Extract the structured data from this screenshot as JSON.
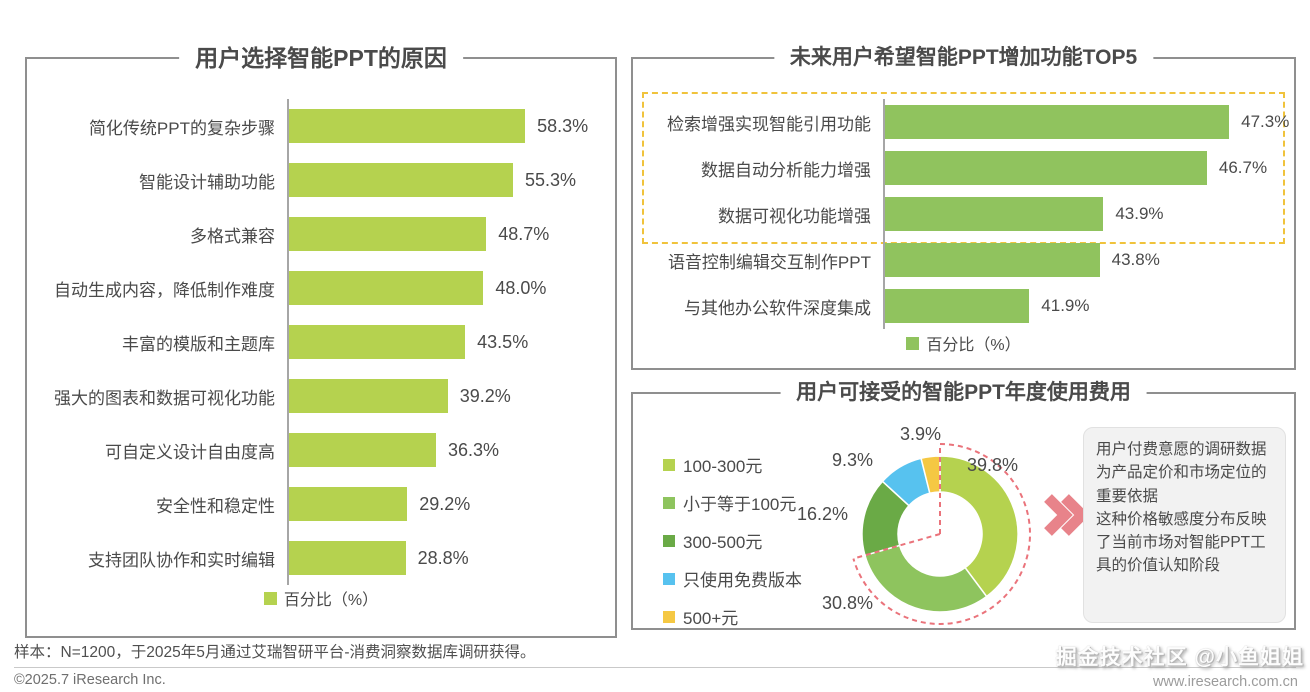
{
  "panels": {
    "reasons": {
      "title": "用户选择智能PPT的原因",
      "legend": "百分比（%）"
    },
    "top5": {
      "title": "未来用户希望智能PPT增加功能TOP5",
      "legend": "百分比（%）"
    },
    "price": {
      "title": "用户可接受的智能PPT年度使用费用",
      "note_lines": [
        "用户付费意愿的调研数据为产品定价和市场定位的重要依据",
        "这种价格敏感度分布反映了当前市场对智能PPT工具的价值认知阶段"
      ]
    }
  },
  "chart_data": [
    {
      "type": "bar",
      "orientation": "horizontal",
      "title": "用户选择智能PPT的原因",
      "categories": [
        "简化传统PPT的复杂步骤",
        "智能设计辅助功能",
        "多格式兼容",
        "自动生成内容，降低制作难度",
        "丰富的模版和主题库",
        "强大的图表和数据可视化功能",
        "可自定义设计自由度高",
        "安全性和稳定性",
        "支持团队协作和实时编辑"
      ],
      "values": [
        58.3,
        55.3,
        48.7,
        48.0,
        43.5,
        39.2,
        36.3,
        29.2,
        28.8
      ],
      "unit": "%",
      "xlim": [
        0,
        80
      ],
      "axis_hidden": true,
      "bar_color": "#b5d24f",
      "legend": "百分比（%）",
      "legend_position": "bottom"
    },
    {
      "type": "bar",
      "orientation": "horizontal",
      "title": "未来用户希望智能PPT增加功能TOP5",
      "categories": [
        "检索增强实现智能引用功能",
        "数据自动分析能力增强",
        "数据可视化功能增强",
        "语音控制编辑交互制作PPT",
        "与其他办公软件深度集成"
      ],
      "values": [
        47.3,
        46.7,
        43.9,
        43.8,
        41.9
      ],
      "unit": "%",
      "xlim": [
        38,
        49
      ],
      "axis_hidden": true,
      "bar_color": "#90c35e",
      "legend": "百分比（%）",
      "legend_position": "bottom",
      "highlight": "top 3 bars framed with yellow dashed box"
    },
    {
      "type": "pie",
      "donut": true,
      "title": "用户可接受的智能PPT年度使用费用",
      "segments": [
        {
          "label": "100-300元",
          "value": 39.8,
          "color": "#b5d24f"
        },
        {
          "label": "小于等于100元",
          "value": 30.8,
          "color": "#8ec45e"
        },
        {
          "label": "300-500元",
          "value": 16.2,
          "color": "#6aaa46"
        },
        {
          "label": "只使用免费版本",
          "value": 9.3,
          "color": "#57c2ef"
        },
        {
          "label": "500+元",
          "value": 3.9,
          "color": "#f5c843"
        }
      ],
      "legend_position": "left",
      "highlight": "pink dashed arc spanning 100-300元 + 小于等于100元 (70.6%)",
      "annotation": "用户付费意愿的调研数据为产品定价和市场定位的重要依据 这种价格敏感度分布反映了当前市场对智能PPT工具的价值认知阶段"
    }
  ],
  "footer": {
    "sample_note": "样本：N=1200，于2025年5月通过艾瑞智研平台-消费洞察数据库调研获得。",
    "copyright": "©2025.7 iResearch Inc.",
    "website": "www.iresearch.com.cn",
    "watermark": "掘金技术社区 @小鱼姐姐"
  },
  "colors": {
    "bar_left": "#b5d24f",
    "bar_right": "#90c35e",
    "highlight_dashed_yellow": "#f0c33c",
    "highlight_dashed_pink": "#ea737b",
    "chevron": "#e8838a",
    "title_text": "#4a4a4a",
    "panel_border": "#8f8f8f"
  }
}
